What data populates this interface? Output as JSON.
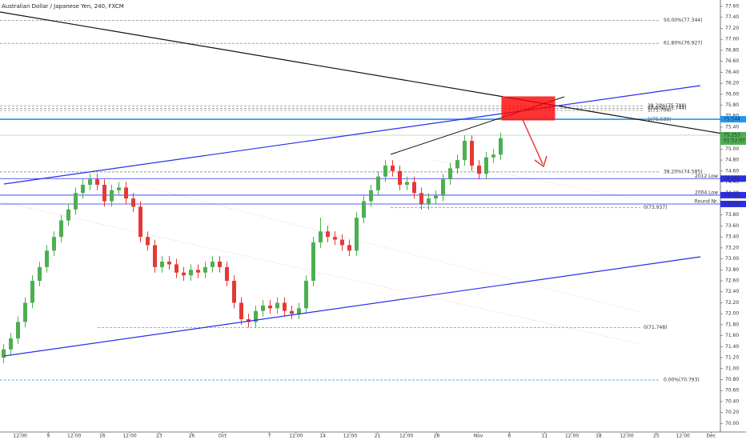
{
  "chart_data": {
    "type": "candlestick",
    "title": "Australian Dollar / Japanese Yen, 240, FXCM",
    "up_color": "#4caf50",
    "down_color": "#e53935",
    "xlim": [
      -0.5,
      99.5
    ],
    "ylim": [
      69.845,
      77.717
    ],
    "xticks": [
      {
        "value": 2.3,
        "label": "12:00"
      },
      {
        "value": 6.2,
        "label": "9"
      },
      {
        "value": 9.8,
        "label": "12:00"
      },
      {
        "value": 13.7,
        "label": "16"
      },
      {
        "value": 17.5,
        "label": "12:00"
      },
      {
        "value": 21.6,
        "label": "23"
      },
      {
        "value": 26.1,
        "label": "26"
      },
      {
        "value": 30.4,
        "label": "Oct"
      },
      {
        "value": 36.9,
        "label": "7"
      },
      {
        "value": 40.6,
        "label": "12:00"
      },
      {
        "value": 44.3,
        "label": "14"
      },
      {
        "value": 48.1,
        "label": "12:00"
      },
      {
        "value": 51.9,
        "label": "21"
      },
      {
        "value": 55.9,
        "label": "12:00"
      },
      {
        "value": 60.1,
        "label": "28"
      },
      {
        "value": 65.9,
        "label": "Nov"
      },
      {
        "value": 70.2,
        "label": "6"
      },
      {
        "value": 75.1,
        "label": "11"
      },
      {
        "value": 78.9,
        "label": "12:00"
      },
      {
        "value": 82.6,
        "label": "18"
      },
      {
        "value": 86.5,
        "label": "12:00"
      },
      {
        "value": 90.6,
        "label": "25"
      },
      {
        "value": 94.3,
        "label": "12:00"
      },
      {
        "value": 98.2,
        "label": "Dec"
      }
    ],
    "yticks": [
      {
        "value": 70.0,
        "label": "70.00"
      },
      {
        "value": 70.2,
        "label": "70.20"
      },
      {
        "value": 70.4,
        "label": "70.40"
      },
      {
        "value": 70.6,
        "label": "70.60"
      },
      {
        "value": 70.8,
        "label": "70.80"
      },
      {
        "value": 71.0,
        "label": "71.00"
      },
      {
        "value": 71.2,
        "label": "71.20"
      },
      {
        "value": 71.4,
        "label": "71.40"
      },
      {
        "value": 71.6,
        "label": "71.60"
      },
      {
        "value": 71.8,
        "label": "71.80"
      },
      {
        "value": 72.0,
        "label": "72.00"
      },
      {
        "value": 72.2,
        "label": "72.20"
      },
      {
        "value": 72.4,
        "label": "72.40"
      },
      {
        "value": 72.6,
        "label": "72.60"
      },
      {
        "value": 72.8,
        "label": "72.80"
      },
      {
        "value": 73.0,
        "label": "73.00"
      },
      {
        "value": 73.2,
        "label": "73.20"
      },
      {
        "value": 73.4,
        "label": "73.40"
      },
      {
        "value": 73.6,
        "label": "73.60"
      },
      {
        "value": 73.8,
        "label": "73.80"
      },
      {
        "value": 74.0,
        "label": "74.00"
      },
      {
        "value": 74.2,
        "label": "74.20"
      },
      {
        "value": 74.4,
        "label": "74.40"
      },
      {
        "value": 74.6,
        "label": "74.60"
      },
      {
        "value": 74.8,
        "label": "74.80"
      },
      {
        "value": 75.0,
        "label": "75.00"
      },
      {
        "value": 75.2,
        "label": "75.20"
      },
      {
        "value": 75.4,
        "label": "75.40"
      },
      {
        "value": 75.6,
        "label": "75.60"
      },
      {
        "value": 75.8,
        "label": "75.80"
      },
      {
        "value": 76.0,
        "label": "76.00"
      },
      {
        "value": 76.2,
        "label": "76.20"
      },
      {
        "value": 76.4,
        "label": "76.40"
      },
      {
        "value": 76.6,
        "label": "76.60"
      },
      {
        "value": 76.8,
        "label": "76.80"
      },
      {
        "value": 77.0,
        "label": "77.00"
      },
      {
        "value": 77.2,
        "label": "77.20"
      },
      {
        "value": 77.4,
        "label": "77.40"
      },
      {
        "value": 77.6,
        "label": "77.60"
      }
    ],
    "open": [
      71.2,
      71.35,
      71.55,
      71.85,
      72.2,
      72.6,
      72.85,
      73.15,
      73.4,
      73.7,
      73.9,
      74.2,
      74.35,
      74.45,
      74.35,
      74.05,
      74.25,
      74.3,
      74.1,
      73.95,
      73.4,
      73.25,
      72.85,
      72.95,
      72.9,
      72.75,
      72.7,
      72.8,
      72.75,
      72.85,
      72.95,
      72.85,
      72.6,
      72.2,
      71.9,
      71.85,
      72.05,
      72.15,
      72.1,
      72.2,
      72.05,
      72.0,
      72.1,
      72.6,
      73.3,
      73.5,
      73.4,
      73.35,
      73.25,
      73.15,
      73.75,
      74.05,
      74.25,
      74.5,
      74.7,
      74.6,
      74.35,
      74.4,
      74.2,
      74.0,
      74.1,
      74.15,
      74.45,
      74.65,
      74.8,
      75.15,
      74.7,
      74.55,
      74.85,
      74.9
    ],
    "high": [
      71.45,
      71.65,
      71.95,
      72.3,
      72.7,
      72.95,
      73.25,
      73.5,
      73.8,
      74.0,
      74.3,
      74.45,
      74.55,
      74.55,
      74.45,
      74.35,
      74.4,
      74.4,
      74.2,
      74.05,
      73.5,
      73.35,
      73.05,
      73.05,
      73.0,
      72.85,
      72.9,
      72.9,
      72.95,
      73.05,
      73.05,
      72.95,
      72.7,
      72.3,
      72.0,
      72.15,
      72.25,
      72.25,
      72.3,
      72.3,
      72.15,
      72.2,
      72.7,
      73.4,
      73.75,
      73.6,
      73.5,
      73.45,
      73.35,
      73.85,
      74.15,
      74.35,
      74.6,
      74.8,
      74.8,
      74.7,
      74.5,
      74.5,
      74.3,
      74.2,
      74.25,
      74.55,
      74.75,
      74.9,
      75.25,
      75.25,
      74.8,
      74.95,
      75.0,
      75.3
    ],
    "low": [
      71.1,
      71.25,
      71.45,
      71.75,
      72.1,
      72.5,
      72.75,
      73.05,
      73.3,
      73.6,
      73.8,
      74.1,
      74.25,
      74.25,
      73.95,
      73.95,
      74.15,
      74.0,
      73.85,
      73.3,
      73.15,
      72.75,
      72.75,
      72.8,
      72.65,
      72.6,
      72.6,
      72.65,
      72.65,
      72.75,
      72.75,
      72.5,
      72.1,
      71.8,
      71.75,
      71.75,
      71.95,
      72.0,
      72.0,
      71.95,
      71.9,
      71.9,
      72.0,
      72.5,
      73.2,
      73.3,
      73.25,
      73.15,
      73.05,
      73.05,
      73.65,
      73.95,
      74.15,
      74.4,
      74.5,
      74.25,
      74.25,
      74.1,
      73.9,
      73.9,
      74.0,
      74.05,
      74.35,
      74.55,
      74.7,
      74.6,
      74.45,
      74.45,
      74.75,
      74.8
    ],
    "close": [
      71.35,
      71.55,
      71.85,
      72.2,
      72.6,
      72.85,
      73.15,
      73.4,
      73.7,
      73.9,
      74.2,
      74.35,
      74.45,
      74.35,
      74.05,
      74.25,
      74.3,
      74.1,
      73.95,
      73.4,
      73.25,
      72.85,
      72.95,
      72.9,
      72.75,
      72.7,
      72.8,
      72.75,
      72.85,
      72.95,
      72.85,
      72.6,
      72.2,
      71.9,
      71.85,
      72.05,
      72.15,
      72.1,
      72.2,
      72.05,
      72.0,
      72.1,
      72.6,
      73.3,
      73.5,
      73.4,
      73.35,
      73.25,
      73.15,
      73.75,
      74.05,
      74.25,
      74.5,
      74.7,
      74.6,
      74.35,
      74.4,
      74.2,
      74.0,
      74.1,
      74.15,
      74.45,
      74.65,
      74.8,
      75.15,
      74.7,
      74.55,
      74.85,
      74.9,
      75.2
    ],
    "levels": [
      {
        "value": 77.344,
        "label": "50.00%(77.344)",
        "color": "#787878"
      },
      {
        "value": 76.927,
        "label": "61.80%(76.927)",
        "color": "#e53935"
      },
      {
        "value": 75.788,
        "label": "38.20%(75.788)",
        "color": "#787878"
      },
      {
        "value": 75.744,
        "label": "50.00%(75.744)",
        "color": "#787878"
      },
      {
        "value": 75.704,
        "label": "1(75.704)",
        "color": "#787878"
      },
      {
        "value": 75.539,
        "label": "1(75.539)",
        "color": "#787878"
      },
      {
        "value": 74.585,
        "label": "38.20%(74.585)",
        "color": "#787878"
      },
      {
        "value": 73.937,
        "label": "0(73.937)",
        "color": "#787878"
      },
      {
        "value": 71.748,
        "label": "0(71.748)",
        "color": "#787878"
      },
      {
        "value": 70.793,
        "label": "0.00%(70.793)",
        "color": "#2196f3"
      }
    ],
    "price_lines": [
      {
        "value": 75.544,
        "badge": "75.544",
        "color": "#2196f3"
      },
      {
        "value": 75.253,
        "badge": "75.253",
        "countdown": "01:52:07",
        "color": "#4caf50"
      },
      {
        "value": 74.462,
        "badge": "74.462",
        "note": "2012 Low",
        "color": "#2a2ee8"
      },
      {
        "value": 74.161,
        "badge": "74.161",
        "note": "2004 Low",
        "color": "#2a2ee8"
      },
      {
        "value": 74.0,
        "badge": "74.000",
        "note": "Round Nr.",
        "color": "#2a2ee8"
      }
    ]
  }
}
